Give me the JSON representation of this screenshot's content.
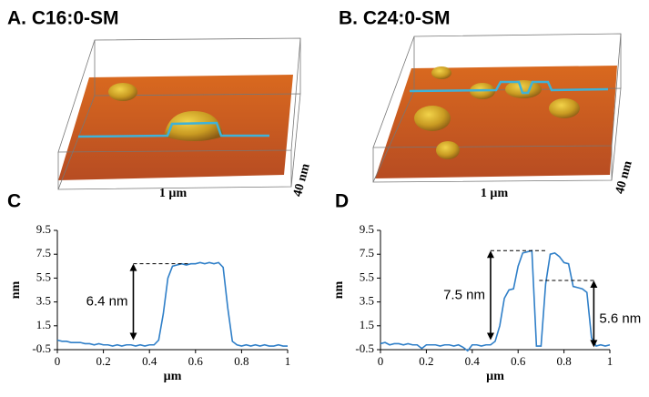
{
  "images": [
    {
      "label": "A. C16:0-SM",
      "scale_x": "1 µm",
      "scale_z": "40 nm"
    },
    {
      "label": "B. C24:0-SM",
      "scale_x": "1 µm",
      "scale_z": "40 nm"
    }
  ],
  "chart_data": [
    {
      "type": "line",
      "panel": "C",
      "xlabel": "µm",
      "ylabel": "nm",
      "x": [
        0,
        0.02,
        0.04,
        0.06,
        0.08,
        0.1,
        0.12,
        0.14,
        0.16,
        0.18,
        0.2,
        0.22,
        0.24,
        0.26,
        0.28,
        0.3,
        0.32,
        0.34,
        0.36,
        0.38,
        0.4,
        0.42,
        0.44,
        0.46,
        0.48,
        0.5,
        0.52,
        0.54,
        0.56,
        0.58,
        0.6,
        0.62,
        0.64,
        0.66,
        0.68,
        0.7,
        0.72,
        0.74,
        0.76,
        0.78,
        0.8,
        0.82,
        0.84,
        0.86,
        0.88,
        0.9,
        0.92,
        0.94,
        0.96,
        0.98,
        1
      ],
      "series": [
        {
          "color": "#2f7fc8",
          "values": [
            0.3,
            0.2,
            0.2,
            0.1,
            0.1,
            0.1,
            0,
            0,
            -0.1,
            0,
            -0.1,
            -0.1,
            -0.2,
            -0.1,
            -0.2,
            -0.1,
            -0.1,
            -0.2,
            -0.1,
            -0.2,
            -0.1,
            -0.1,
            0.3,
            2.5,
            5.5,
            6.5,
            6.6,
            6.7,
            6.6,
            6.7,
            6.7,
            6.8,
            6.7,
            6.8,
            6.7,
            6.8,
            6.4,
            3.0,
            0.2,
            -0.1,
            -0.2,
            -0.1,
            -0.2,
            -0.1,
            -0.2,
            -0.1,
            -0.2,
            -0.2,
            -0.1,
            -0.2,
            -0.2
          ]
        }
      ],
      "xlim": [
        0,
        1
      ],
      "ylim": [
        -0.5,
        9.5
      ],
      "xticks": [
        0,
        0.2,
        0.4,
        0.6,
        0.8,
        1
      ],
      "yticks": [
        -0.5,
        1.5,
        3.5,
        5.5,
        7.5,
        9.5
      ],
      "annotations": [
        {
          "label": "6.4 nm",
          "x": 0.33,
          "y_from": 0.3,
          "y_to": 6.7
        }
      ]
    },
    {
      "type": "line",
      "panel": "D",
      "xlabel": "µm",
      "ylabel": "nm",
      "x": [
        0,
        0.02,
        0.04,
        0.06,
        0.08,
        0.1,
        0.12,
        0.14,
        0.16,
        0.18,
        0.2,
        0.22,
        0.24,
        0.26,
        0.28,
        0.3,
        0.32,
        0.34,
        0.36,
        0.38,
        0.4,
        0.42,
        0.44,
        0.46,
        0.48,
        0.5,
        0.52,
        0.54,
        0.56,
        0.58,
        0.6,
        0.62,
        0.64,
        0.66,
        0.68,
        0.7,
        0.72,
        0.74,
        0.76,
        0.78,
        0.8,
        0.82,
        0.84,
        0.86,
        0.88,
        0.9,
        0.92,
        0.94,
        0.96,
        0.98,
        1
      ],
      "series": [
        {
          "color": "#2f7fc8",
          "values": [
            0,
            0.1,
            -0.1,
            0,
            0,
            -0.1,
            0,
            -0.1,
            -0.1,
            -0.4,
            -0.1,
            -0.1,
            -0.1,
            -0.2,
            -0.1,
            -0.1,
            -0.2,
            -0.1,
            -0.3,
            -0.6,
            -0.1,
            -0.1,
            -0.2,
            -0.1,
            -0.1,
            0.2,
            1.5,
            3.8,
            4.5,
            4.6,
            6.5,
            7.6,
            7.7,
            7.8,
            -0.2,
            -0.2,
            5.0,
            7.5,
            7.6,
            7.3,
            6.8,
            6.7,
            4.8,
            4.7,
            4.6,
            4.3,
            0.5,
            -0.2,
            -0.1,
            -0.2,
            -0.1
          ]
        }
      ],
      "xlim": [
        0,
        1
      ],
      "ylim": [
        -0.5,
        9.5
      ],
      "xticks": [
        0,
        0.2,
        0.4,
        0.6,
        0.8,
        1
      ],
      "yticks": [
        -0.5,
        1.5,
        3.5,
        5.5,
        7.5,
        9.5
      ],
      "annotations": [
        {
          "label": "7.5 nm",
          "x": 0.48,
          "y_from": 0.3,
          "y_to": 7.8
        },
        {
          "label": "5.6 nm",
          "x": 0.93,
          "y_from": -0.3,
          "y_to": 5.3
        }
      ]
    }
  ]
}
